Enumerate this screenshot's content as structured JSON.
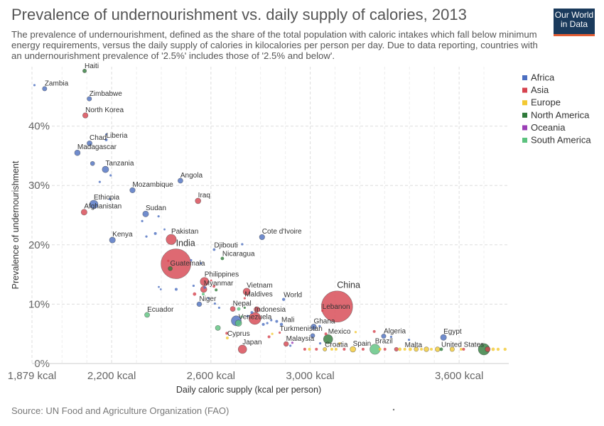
{
  "header": {
    "title": "Prevalence of undernourishment vs. daily supply of calories, 2013",
    "subtitle": "The prevalence of undernourishment, defined as the share of the total population with caloric intakes which fall below minimum energy requirements, versus the daily supply of calories in kilocalories per person per day. Due to data reporting, countries with an undernourishment prevalence of '2.5%' includes those of '2.5% and below'.",
    "logo_line1": "Our World",
    "logo_line2": "in Data"
  },
  "footer": {
    "source": "Source: UN Food and Agriculture Organization (FAO)"
  },
  "chart_data": {
    "type": "scatter",
    "xlabel": "Daily caloric supply (kcal per person)",
    "ylabel": "Prevalence of undernourishment",
    "xlim": [
      1879,
      3800
    ],
    "ylim": [
      0,
      50
    ],
    "x_ticks": [
      {
        "value": 1879,
        "label": "1,879 kcal"
      },
      {
        "value": 2200,
        "label": "2,200 kcal"
      },
      {
        "value": 2600,
        "label": "2,600 kcal"
      },
      {
        "value": 3000,
        "label": "3,000 kcal"
      },
      {
        "value": 3600,
        "label": "3,600 kcal"
      }
    ],
    "y_ticks": [
      {
        "value": 0,
        "label": "0%"
      },
      {
        "value": 10,
        "label": "10%"
      },
      {
        "value": 20,
        "label": "20%"
      },
      {
        "value": 30,
        "label": "30%"
      },
      {
        "value": 40,
        "label": "40%"
      }
    ],
    "grid": true,
    "legend_position": "right",
    "colors": {
      "Africa": "#4c6fc1",
      "Asia": "#d6434f",
      "Europe": "#f3c933",
      "North America": "#2f7a3a",
      "Oceania": "#9b3fb6",
      "South America": "#5cc27e"
    },
    "legend": [
      "Africa",
      "Asia",
      "Europe",
      "North America",
      "Oceania",
      "South America"
    ],
    "points": [
      {
        "label": "Haiti",
        "region": "North America",
        "x": 2091,
        "y": 49.3,
        "size": 2.7
      },
      {
        "label": "Zambia",
        "region": "Africa",
        "x": 1930,
        "y": 46.3,
        "size": 3.2
      },
      {
        "label": "",
        "region": "Africa",
        "x": 1889,
        "y": 46.9,
        "size": 1.6
      },
      {
        "label": "Zimbabwe",
        "region": "Africa",
        "x": 2110,
        "y": 44.6,
        "size": 3.2
      },
      {
        "label": "North Korea",
        "region": "Asia",
        "x": 2094,
        "y": 41.8,
        "size": 3.8
      },
      {
        "label": "Liberia",
        "region": "Africa",
        "x": 2178,
        "y": 37.7,
        "size": 2.0
      },
      {
        "label": "",
        "region": "Africa",
        "x": 2178,
        "y": 38.6,
        "size": 1.4
      },
      {
        "label": "Chad",
        "region": "Africa",
        "x": 2111,
        "y": 37.1,
        "size": 3.6
      },
      {
        "label": "Madagascar",
        "region": "Africa",
        "x": 2062,
        "y": 35.5,
        "size": 4.0
      },
      {
        "label": "Tanzania",
        "region": "Africa",
        "x": 2175,
        "y": 32.7,
        "size": 4.6
      },
      {
        "label": "",
        "region": "Africa",
        "x": 2123,
        "y": 33.7,
        "size": 3.0
      },
      {
        "label": "",
        "region": "Africa",
        "x": 2196,
        "y": 31.7,
        "size": 1.6
      },
      {
        "label": "",
        "region": "Africa",
        "x": 2152,
        "y": 30.6,
        "size": 1.6
      },
      {
        "label": "Angola",
        "region": "Africa",
        "x": 2477,
        "y": 30.8,
        "size": 3.6
      },
      {
        "label": "Mozambique",
        "region": "Africa",
        "x": 2284,
        "y": 29.2,
        "size": 3.8
      },
      {
        "label": "Iraq",
        "region": "Asia",
        "x": 2548,
        "y": 27.4,
        "size": 4.0
      },
      {
        "label": "Ethiopia",
        "region": "Africa",
        "x": 2128,
        "y": 26.8,
        "size": 6.0
      },
      {
        "label": "",
        "region": "Africa",
        "x": 2193,
        "y": 27.7,
        "size": 1.6
      },
      {
        "label": "Afghanistan",
        "region": "Asia",
        "x": 2089,
        "y": 25.5,
        "size": 4.2
      },
      {
        "label": "Sudan",
        "region": "Africa",
        "x": 2337,
        "y": 25.2,
        "size": 4.2
      },
      {
        "label": "",
        "region": "Africa",
        "x": 2389,
        "y": 24.8,
        "size": 1.6
      },
      {
        "label": "",
        "region": "Africa",
        "x": 2323,
        "y": 24.0,
        "size": 1.6
      },
      {
        "label": "",
        "region": "Africa",
        "x": 2413,
        "y": 22.6,
        "size": 1.4
      },
      {
        "label": "Kenya",
        "region": "Africa",
        "x": 2203,
        "y": 20.8,
        "size": 4.2
      },
      {
        "label": "",
        "region": "Africa",
        "x": 2376,
        "y": 21.9,
        "size": 2.0
      },
      {
        "label": "",
        "region": "Africa",
        "x": 2340,
        "y": 21.4,
        "size": 1.6
      },
      {
        "label": "Pakistan",
        "region": "Asia",
        "x": 2440,
        "y": 20.9,
        "size": 7.2
      },
      {
        "label": "Cote d'Ivoire",
        "region": "Africa",
        "x": 2806,
        "y": 21.3,
        "size": 3.8
      },
      {
        "label": "",
        "region": "Africa",
        "x": 2726,
        "y": 20.1,
        "size": 1.6
      },
      {
        "label": "Djibouti",
        "region": "Africa",
        "x": 2613,
        "y": 19.2,
        "size": 1.9
      },
      {
        "label": "India",
        "region": "Asia",
        "x": 2459,
        "y": 16.8,
        "size": 21.0
      },
      {
        "label": "Guatemala",
        "region": "North America",
        "x": 2436,
        "y": 16.0,
        "size": 3.0
      },
      {
        "label": "",
        "region": "Asia",
        "x": 2428,
        "y": 17.3,
        "size": 1.6
      },
      {
        "label": "Nicaragua",
        "region": "North America",
        "x": 2646,
        "y": 17.7,
        "size": 2.4
      },
      {
        "label": "",
        "region": "Africa",
        "x": 2520,
        "y": 17.4,
        "size": 1.6
      },
      {
        "label": "",
        "region": "Africa",
        "x": 2559,
        "y": 16.9,
        "size": 1.6
      },
      {
        "label": "Philippines",
        "region": "Asia",
        "x": 2574,
        "y": 13.8,
        "size": 6.0
      },
      {
        "label": "Myanmar",
        "region": "Asia",
        "x": 2571,
        "y": 12.5,
        "size": 4.5
      },
      {
        "label": "",
        "region": "Asia",
        "x": 2601,
        "y": 14.0,
        "size": 1.4
      },
      {
        "label": "",
        "region": "Asia",
        "x": 2612,
        "y": 13.0,
        "size": 1.9
      },
      {
        "label": "",
        "region": "North America",
        "x": 2621,
        "y": 12.4,
        "size": 2.0
      },
      {
        "label": "",
        "region": "South America",
        "x": 2569,
        "y": 11.7,
        "size": 2.0
      },
      {
        "label": "",
        "region": "Asia",
        "x": 2534,
        "y": 11.7,
        "size": 2.4
      },
      {
        "label": "",
        "region": "Africa",
        "x": 2591,
        "y": 11.0,
        "size": 1.6
      },
      {
        "label": "",
        "region": "Africa",
        "x": 2575,
        "y": 12.8,
        "size": 1.8
      },
      {
        "label": "",
        "region": "Africa",
        "x": 2530,
        "y": 13.1,
        "size": 1.6
      },
      {
        "label": "",
        "region": "Africa",
        "x": 2460,
        "y": 12.5,
        "size": 2.0
      },
      {
        "label": "",
        "region": "Africa",
        "x": 2390,
        "y": 12.9,
        "size": 1.4
      },
      {
        "label": "",
        "region": "Africa",
        "x": 2398,
        "y": 12.5,
        "size": 1.4
      },
      {
        "label": "Niger",
        "region": "Africa",
        "x": 2553,
        "y": 10.0,
        "size": 3.4
      },
      {
        "label": "",
        "region": "Africa",
        "x": 2616,
        "y": 10.1,
        "size": 1.6
      },
      {
        "label": "",
        "region": "Africa",
        "x": 2633,
        "y": 9.4,
        "size": 1.6
      },
      {
        "label": "Vietnam",
        "region": "Asia",
        "x": 2744,
        "y": 12.1,
        "size": 5.0
      },
      {
        "label": "Maldives",
        "region": "Asia",
        "x": 2736,
        "y": 11.0,
        "size": 1.6
      },
      {
        "label": "World",
        "region": "Africa",
        "x": 2893,
        "y": 10.8,
        "size": 2.2
      },
      {
        "label": "Nepal",
        "region": "Asia",
        "x": 2688,
        "y": 9.2,
        "size": 3.6
      },
      {
        "label": "",
        "region": "South America",
        "x": 2712,
        "y": 9.2,
        "size": 2.5
      },
      {
        "label": "",
        "region": "North America",
        "x": 2736,
        "y": 9.4,
        "size": 1.6
      },
      {
        "label": "Indonesia",
        "region": "Asia",
        "x": 2777,
        "y": 7.6,
        "size": 8.5
      },
      {
        "label": "",
        "region": "Asia",
        "x": 2785,
        "y": 9.1,
        "size": 4.0
      },
      {
        "label": "",
        "region": "Africa",
        "x": 2765,
        "y": 8.6,
        "size": 2.0
      },
      {
        "label": "",
        "region": "Africa",
        "x": 2748,
        "y": 8.0,
        "size": 1.6
      },
      {
        "label": "",
        "region": "South America",
        "x": 2724,
        "y": 7.9,
        "size": 1.6
      },
      {
        "label": "Venezuela",
        "region": "South America",
        "x": 2711,
        "y": 6.8,
        "size": 4.5
      },
      {
        "label": "",
        "region": "Africa",
        "x": 2702,
        "y": 7.2,
        "size": 7.0
      },
      {
        "label": "Ecuador",
        "region": "South America",
        "x": 2343,
        "y": 8.2,
        "size": 3.6
      },
      {
        "label": "Mali",
        "region": "Africa",
        "x": 2884,
        "y": 6.6,
        "size": 2.2
      },
      {
        "label": "",
        "region": "Africa",
        "x": 2865,
        "y": 7.1,
        "size": 2.0
      },
      {
        "label": "",
        "region": "Africa",
        "x": 2827,
        "y": 6.8,
        "size": 1.6
      },
      {
        "label": "",
        "region": "Africa",
        "x": 2843,
        "y": 7.3,
        "size": 1.6
      },
      {
        "label": "",
        "region": "Africa",
        "x": 2811,
        "y": 6.6,
        "size": 2.0
      },
      {
        "label": "",
        "region": "South America",
        "x": 2628,
        "y": 6.0,
        "size": 3.6
      },
      {
        "label": "Cyprus",
        "region": "Europe",
        "x": 2666,
        "y": 4.3,
        "size": 2.0
      },
      {
        "label": "",
        "region": "Asia",
        "x": 2664,
        "y": 5.1,
        "size": 2.0
      },
      {
        "label": "Japan",
        "region": "Asia",
        "x": 2727,
        "y": 2.4,
        "size": 6.0
      },
      {
        "label": "Turkmenistan",
        "region": "Asia",
        "x": 2877,
        "y": 5.2,
        "size": 1.6
      },
      {
        "label": "",
        "region": "Europe",
        "x": 2847,
        "y": 5.0,
        "size": 1.6
      },
      {
        "label": "",
        "region": "Asia",
        "x": 2834,
        "y": 4.5,
        "size": 2.0
      },
      {
        "label": "Malaysia",
        "region": "Asia",
        "x": 2903,
        "y": 3.3,
        "size": 3.4
      },
      {
        "label": "",
        "region": "Oceania",
        "x": 2928,
        "y": 3.5,
        "size": 1.6
      },
      {
        "label": "",
        "region": "Africa",
        "x": 2920,
        "y": 3.0,
        "size": 1.6
      },
      {
        "label": "China",
        "region": "Asia",
        "x": 3108,
        "y": 9.6,
        "size": 22.0
      },
      {
        "label": "Lebanon",
        "region": "Asia",
        "x": 3049,
        "y": 8.9,
        "size": 1.6
      },
      {
        "label": "Ghana",
        "region": "Africa",
        "x": 3014,
        "y": 6.2,
        "size": 3.8
      },
      {
        "label": "",
        "region": "Africa",
        "x": 3038,
        "y": 6.3,
        "size": 1.6
      },
      {
        "label": "Mexico",
        "region": "North America",
        "x": 3072,
        "y": 4.1,
        "size": 6.5
      },
      {
        "label": "",
        "region": "Africa",
        "x": 3010,
        "y": 4.7,
        "size": 3.0
      },
      {
        "label": "",
        "region": "Asia",
        "x": 3063,
        "y": 5.0,
        "size": 2.0
      },
      {
        "label": "",
        "region": "Europe",
        "x": 3183,
        "y": 5.3,
        "size": 1.6
      },
      {
        "label": "",
        "region": "Europe",
        "x": 3118,
        "y": 3.4,
        "size": 1.6
      },
      {
        "label": "",
        "region": "Africa",
        "x": 3040,
        "y": 3.4,
        "size": 1.6
      },
      {
        "label": "Croatia",
        "region": "Europe",
        "x": 3059,
        "y": 2.4,
        "size": 2.6
      },
      {
        "label": "",
        "region": "Asia",
        "x": 2978,
        "y": 2.4,
        "size": 2.0
      },
      {
        "label": "",
        "region": "Europe",
        "x": 2997,
        "y": 2.4,
        "size": 2.0
      },
      {
        "label": "",
        "region": "Asia",
        "x": 3025,
        "y": 2.4,
        "size": 2.0
      },
      {
        "label": "",
        "region": "Europe",
        "x": 3087,
        "y": 2.4,
        "size": 2.0
      },
      {
        "label": "",
        "region": "Europe",
        "x": 3104,
        "y": 2.4,
        "size": 2.0
      },
      {
        "label": "",
        "region": "Asia",
        "x": 3137,
        "y": 2.4,
        "size": 2.0
      },
      {
        "label": "Spain",
        "region": "Europe",
        "x": 3172,
        "y": 2.4,
        "size": 4.0
      },
      {
        "label": "",
        "region": "Asia",
        "x": 3213,
        "y": 2.4,
        "size": 2.0
      },
      {
        "label": "Brazil",
        "region": "South America",
        "x": 3261,
        "y": 2.4,
        "size": 7.2
      },
      {
        "label": "",
        "region": "Asia",
        "x": 3301,
        "y": 2.4,
        "size": 2.0
      },
      {
        "label": "",
        "region": "Europe",
        "x": 3281,
        "y": 2.4,
        "size": 2.0
      },
      {
        "label": "Algeria",
        "region": "Africa",
        "x": 3296,
        "y": 4.6,
        "size": 3.2
      },
      {
        "label": "",
        "region": "Asia",
        "x": 3258,
        "y": 5.4,
        "size": 2.0
      },
      {
        "label": "",
        "region": "Africa",
        "x": 3326,
        "y": 4.5,
        "size": 1.6
      },
      {
        "label": "Malta",
        "region": "Europe",
        "x": 3381,
        "y": 2.4,
        "size": 2.0
      },
      {
        "label": "",
        "region": "Asia",
        "x": 3347,
        "y": 2.4,
        "size": 2.8
      },
      {
        "label": "",
        "region": "Europe",
        "x": 3361,
        "y": 2.4,
        "size": 2.4
      },
      {
        "label": "",
        "region": "Europe",
        "x": 3403,
        "y": 2.4,
        "size": 2.4
      },
      {
        "label": "",
        "region": "Europe",
        "x": 3427,
        "y": 2.4,
        "size": 3.0
      },
      {
        "label": "",
        "region": "Europe",
        "x": 3448,
        "y": 2.4,
        "size": 2.0
      },
      {
        "label": "",
        "region": "Europe",
        "x": 3468,
        "y": 2.4,
        "size": 3.4
      },
      {
        "label": "",
        "region": "Europe",
        "x": 3488,
        "y": 2.4,
        "size": 2.0
      },
      {
        "label": "",
        "region": "Africa",
        "x": 3398,
        "y": 4.0,
        "size": 1.6
      },
      {
        "label": "United States",
        "region": "North America",
        "x": 3528,
        "y": 2.4,
        "size": 2.4
      },
      {
        "label": "",
        "region": "Europe",
        "x": 3513,
        "y": 2.4,
        "size": 3.4
      },
      {
        "label": "Egypt",
        "region": "Africa",
        "x": 3537,
        "y": 4.4,
        "size": 4.2
      },
      {
        "label": "",
        "region": "Europe",
        "x": 3572,
        "y": 2.4,
        "size": 3.2
      },
      {
        "label": "",
        "region": "Europe",
        "x": 3608,
        "y": 2.4,
        "size": 2.0
      },
      {
        "label": "",
        "region": "Asia",
        "x": 3618,
        "y": 2.4,
        "size": 2.0
      },
      {
        "label": "",
        "region": "North America",
        "x": 3700,
        "y": 2.4,
        "size": 8.0
      },
      {
        "label": "",
        "region": "Asia",
        "x": 3715,
        "y": 2.4,
        "size": 3.6
      },
      {
        "label": "",
        "region": "Europe",
        "x": 3737,
        "y": 2.4,
        "size": 2.4
      },
      {
        "label": "",
        "region": "Europe",
        "x": 3757,
        "y": 2.4,
        "size": 2.2
      },
      {
        "label": "",
        "region": "Europe",
        "x": 3785,
        "y": 2.4,
        "size": 2.2
      }
    ]
  }
}
